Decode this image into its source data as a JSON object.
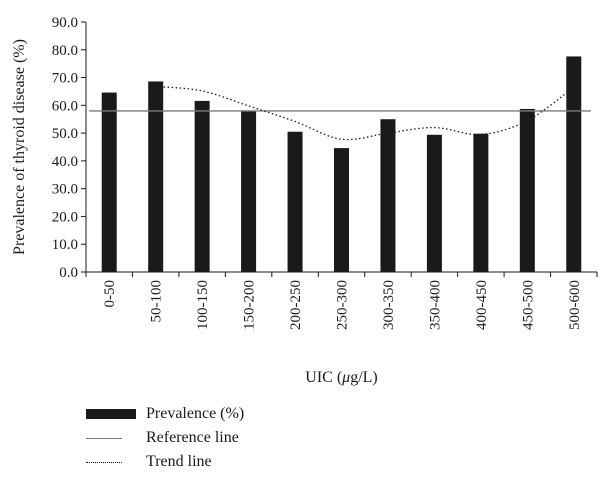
{
  "chart_data": {
    "type": "bar",
    "title": "",
    "xlabel_prefix": "UIC (",
    "xlabel_mu": "μ",
    "xlabel_suffix": "g/L)",
    "ylabel": "Prevalence of thyroid disease (%)",
    "ylim": [
      0,
      90
    ],
    "yticks": [
      "0.0",
      "10.0",
      "20.0",
      "30.0",
      "40.0",
      "50.0",
      "60.0",
      "70.0",
      "80.0",
      "90.0"
    ],
    "categories": [
      "0-50",
      "50-100",
      "100-150",
      "150-200",
      "200-250",
      "250-300",
      "300-350",
      "350-400",
      "400-450",
      "450-500",
      "500-600"
    ],
    "series": [
      {
        "name": "Prevalence (%)",
        "type": "bar",
        "values": [
          64.6,
          68.6,
          61.6,
          58.1,
          50.5,
          44.6,
          55.0,
          49.4,
          49.8,
          58.7,
          77.6
        ]
      },
      {
        "name": "Reference line",
        "type": "line",
        "values": [
          58.0,
          58.0,
          58.0,
          58.0,
          58.0,
          58.0,
          58.0,
          58.0,
          58.0,
          58.0,
          58.0
        ]
      },
      {
        "name": "Trend line",
        "type": "line",
        "values": [
          null,
          66.8,
          65.2,
          59.8,
          54.2,
          47.8,
          50.0,
          52.0,
          49.5,
          54.5,
          66.5
        ]
      }
    ],
    "grid": false,
    "legend_position": "bottom-left",
    "colors": {
      "bars": "#1a1a1a",
      "reference": "#7a7a7a",
      "trend": "#1a1a1a"
    }
  },
  "legend": {
    "bar_label": "Prevalence (%)",
    "reference_label": "Reference line",
    "trend_label": "Trend line"
  }
}
